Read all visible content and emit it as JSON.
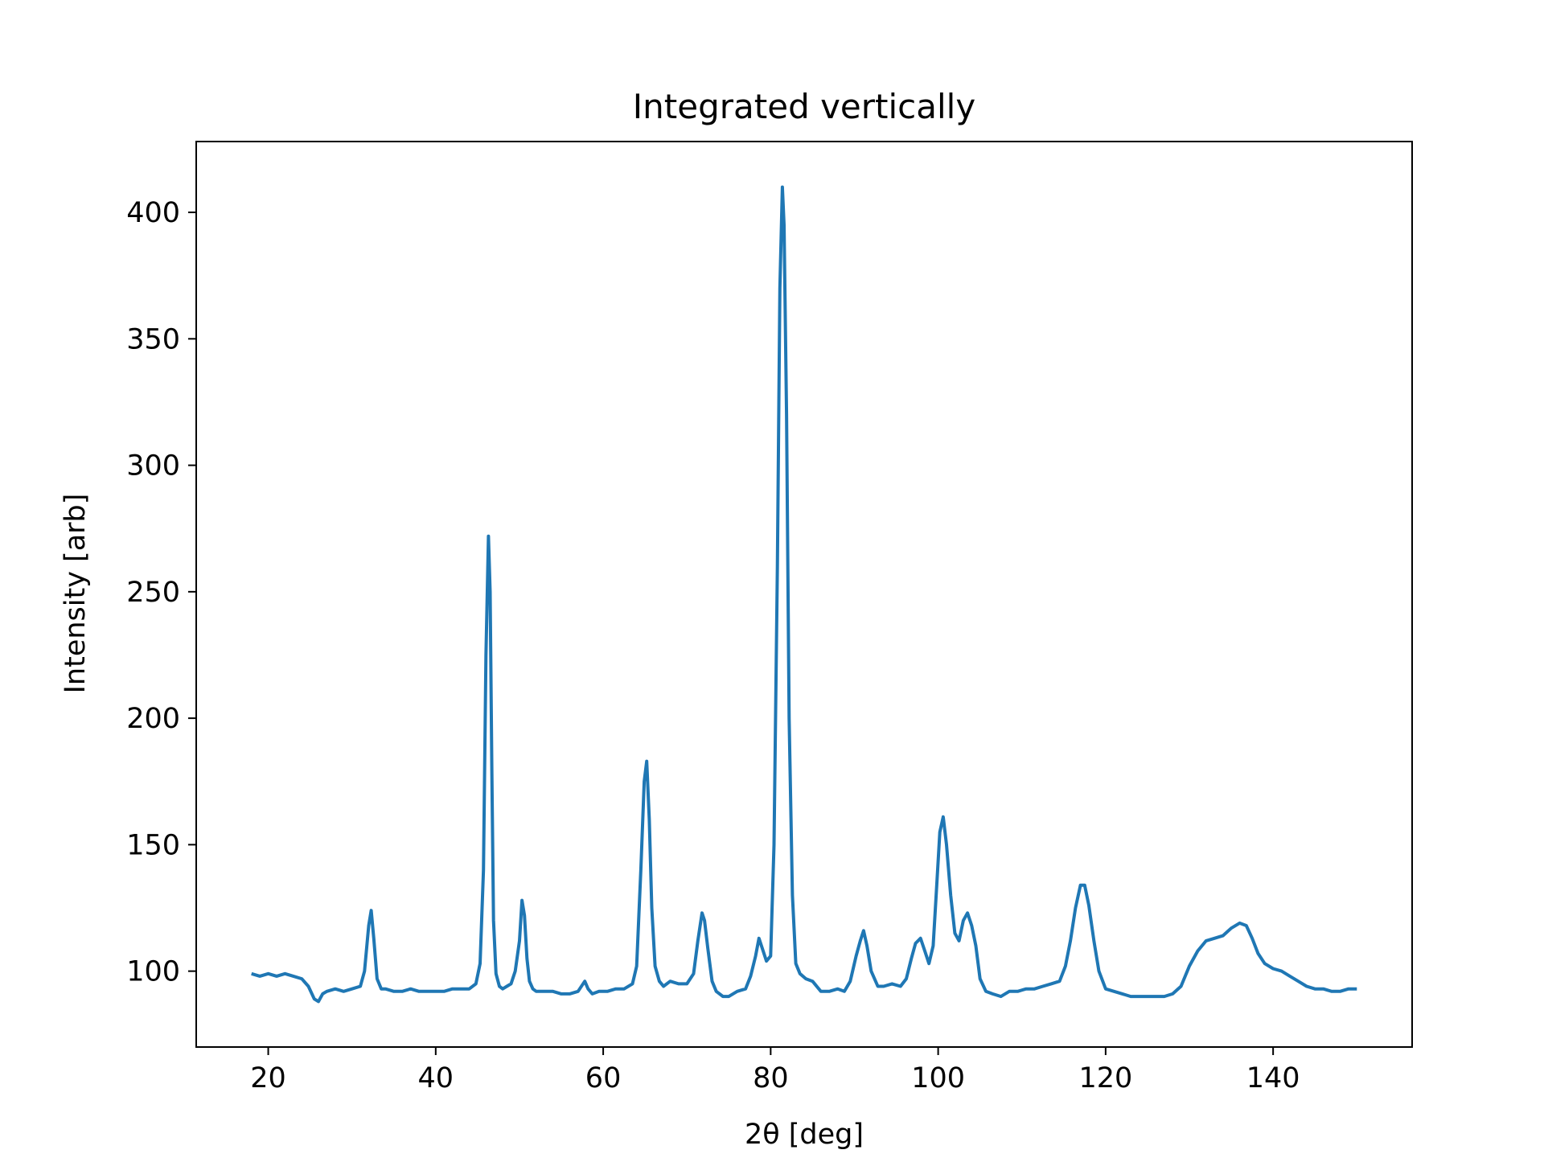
{
  "chart_data": {
    "type": "line",
    "title": "Integrated vertically",
    "xlabel": "2θ [deg]",
    "ylabel": "Intensity [arb]",
    "xlim": [
      11.4,
      156.6
    ],
    "ylim": [
      70,
      428
    ],
    "xticks": [
      20,
      40,
      60,
      80,
      100,
      120,
      140
    ],
    "yticks": [
      100,
      150,
      200,
      250,
      300,
      350,
      400
    ],
    "xtick_labels": [
      "20",
      "40",
      "60",
      "80",
      "100",
      "120",
      "140"
    ],
    "ytick_labels": [
      "100",
      "150",
      "200",
      "250",
      "300",
      "350",
      "400"
    ],
    "grid": false,
    "legend": "none",
    "colors": {
      "series": "#1f77b4",
      "axes": "#000000"
    },
    "series": [
      {
        "x": [
          18,
          19,
          20,
          21,
          22,
          23,
          24,
          24.8,
          25.5,
          26,
          26.5,
          27,
          28,
          29,
          30,
          31,
          31.5,
          32,
          32.3,
          32.6,
          33,
          33.5,
          34,
          35,
          36,
          37,
          38,
          39,
          40,
          41,
          42,
          43,
          44,
          44.8,
          45.3,
          45.7,
          46,
          46.3,
          46.5,
          46.7,
          46.9,
          47.2,
          47.6,
          48,
          48.5,
          49,
          49.5,
          50,
          50.3,
          50.6,
          50.9,
          51.2,
          51.6,
          52,
          53,
          54,
          55,
          56,
          57,
          57.8,
          58.2,
          58.7,
          59.5,
          60.5,
          61.5,
          62.5,
          63.5,
          64,
          64.5,
          64.9,
          65.2,
          65.5,
          65.8,
          66.2,
          66.7,
          67.2,
          68,
          69,
          70,
          70.8,
          71.3,
          71.8,
          72.1,
          72.5,
          73,
          73.5,
          74.3,
          75,
          76,
          77,
          77.6,
          78.2,
          78.6,
          79,
          79.5,
          80,
          80.4,
          80.8,
          81.1,
          81.4,
          81.6,
          81.9,
          82.2,
          82.6,
          83,
          83.5,
          84.2,
          85,
          86,
          87,
          88,
          88.8,
          89.5,
          90.2,
          90.7,
          91.1,
          91.5,
          92,
          92.8,
          93.5,
          94.5,
          95.5,
          96.2,
          96.8,
          97.3,
          97.9,
          98.4,
          98.9,
          99.4,
          99.8,
          100.2,
          100.6,
          101,
          101.5,
          102,
          102.5,
          103,
          103.5,
          104,
          104.5,
          105,
          105.7,
          106.5,
          107.5,
          108.5,
          109.5,
          110.5,
          111.5,
          112.5,
          113.5,
          114.5,
          115.2,
          115.8,
          116.4,
          117,
          117.5,
          118,
          118.6,
          119.2,
          120,
          121,
          122,
          123,
          124,
          125,
          126,
          127,
          128,
          129,
          130,
          131,
          132,
          133,
          134,
          135,
          136,
          136.8,
          137.5,
          138.2,
          139,
          140,
          141,
          142,
          143,
          144,
          145,
          146,
          147,
          148,
          149,
          150
        ],
        "y": [
          99,
          98,
          99,
          98,
          99,
          98,
          97,
          94,
          89,
          88,
          91,
          92,
          93,
          92,
          93,
          94,
          100,
          118,
          124,
          113,
          97,
          93,
          93,
          92,
          92,
          93,
          92,
          92,
          92,
          92,
          93,
          93,
          93,
          95,
          103,
          140,
          225,
          272,
          250,
          180,
          120,
          99,
          94,
          93,
          94,
          95,
          100,
          112,
          128,
          122,
          105,
          96,
          93,
          92,
          92,
          92,
          91,
          91,
          92,
          96,
          93,
          91,
          92,
          92,
          93,
          93,
          95,
          102,
          140,
          175,
          183,
          160,
          125,
          102,
          96,
          94,
          96,
          95,
          95,
          99,
          112,
          123,
          120,
          109,
          96,
          92,
          90,
          90,
          92,
          93,
          98,
          106,
          113,
          109,
          104,
          106,
          150,
          260,
          370,
          410,
          395,
          320,
          200,
          130,
          103,
          99,
          97,
          96,
          92,
          92,
          93,
          92,
          96,
          106,
          112,
          116,
          110,
          100,
          94,
          94,
          95,
          94,
          97,
          105,
          111,
          113,
          108,
          103,
          110,
          132,
          155,
          161,
          150,
          130,
          115,
          112,
          120,
          123,
          118,
          110,
          97,
          92,
          91,
          90,
          92,
          92,
          93,
          93,
          94,
          95,
          96,
          102,
          112,
          125,
          134,
          134,
          126,
          112,
          100,
          93,
          92,
          91,
          90,
          90,
          90,
          90,
          90,
          91,
          94,
          102,
          108,
          112,
          113,
          114,
          117,
          119,
          118,
          113,
          107,
          103,
          101,
          100,
          98,
          96,
          94,
          93,
          93,
          92,
          92,
          93,
          93
        ]
      }
    ]
  }
}
